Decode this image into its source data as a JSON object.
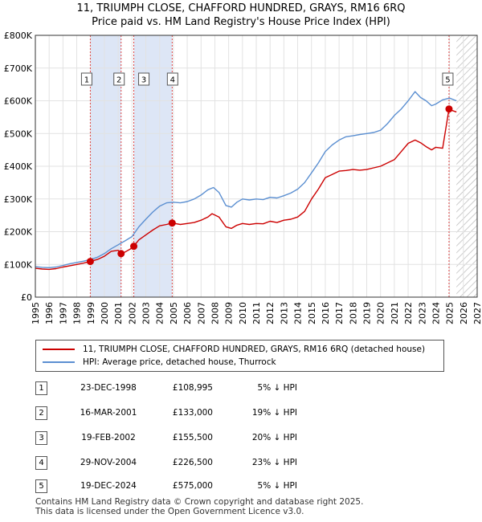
{
  "title_line1": "11, TRIUMPH CLOSE, CHAFFORD HUNDRED, GRAYS, RM16 6RQ",
  "title_line2": "Price paid vs. HM Land Registry's House Price Index (HPI)",
  "chart_data": {
    "type": "line",
    "title": "11, TRIUMPH CLOSE, CHAFFORD HUNDRED, GRAYS, RM16 6RQ — Price paid vs. HM Land Registry's House Price Index (HPI)",
    "xlabel": "",
    "ylabel": "",
    "xlim": [
      1995,
      2027
    ],
    "ylim": [
      0,
      800000
    ],
    "x_ticks": [
      "1995",
      "1996",
      "1997",
      "1998",
      "1999",
      "2000",
      "2001",
      "2002",
      "2003",
      "2004",
      "2005",
      "2006",
      "2007",
      "2008",
      "2009",
      "2010",
      "2011",
      "2012",
      "2013",
      "2014",
      "2015",
      "2016",
      "2017",
      "2018",
      "2019",
      "2020",
      "2021",
      "2022",
      "2023",
      "2024",
      "2025",
      "2026",
      "2027"
    ],
    "y_ticks": [
      "£0",
      "£100K",
      "£200K",
      "£300K",
      "£400K",
      "£500K",
      "£600K",
      "£700K",
      "£800K"
    ],
    "grid": true,
    "forecast_start": 2025.5,
    "series": [
      {
        "name": "11, TRIUMPH CLOSE, CHAFFORD HUNDRED, GRAYS, RM16 6RQ (detached house)",
        "color": "#cc0000",
        "x": [
          1995.0,
          1995.5,
          1996.0,
          1996.5,
          1997.0,
          1997.5,
          1998.0,
          1998.5,
          1998.98,
          1999.5,
          2000.0,
          2000.5,
          2001.0,
          2001.21,
          2001.5,
          2002.0,
          2002.13,
          2002.5,
          2003.0,
          2003.5,
          2004.0,
          2004.5,
          2004.91,
          2005.5,
          2006.0,
          2006.5,
          2007.0,
          2007.5,
          2007.8,
          2008.3,
          2008.8,
          2009.2,
          2009.6,
          2010.0,
          2010.5,
          2011.0,
          2011.5,
          2012.0,
          2012.5,
          2013.0,
          2013.5,
          2014.0,
          2014.5,
          2015.0,
          2015.5,
          2016.0,
          2016.5,
          2017.0,
          2017.5,
          2018.0,
          2018.5,
          2019.0,
          2019.5,
          2020.0,
          2020.5,
          2021.0,
          2021.5,
          2022.0,
          2022.5,
          2022.9,
          2023.3,
          2023.7,
          2024.0,
          2024.5,
          2024.96,
          2025.2,
          2025.5
        ],
        "y": [
          88000,
          86000,
          85000,
          87000,
          92000,
          96000,
          100000,
          104000,
          108995,
          115000,
          125000,
          140000,
          143000,
          133000,
          138000,
          150000,
          155500,
          175000,
          190000,
          205000,
          218000,
          222000,
          226500,
          222000,
          225000,
          228000,
          235000,
          245000,
          255000,
          245000,
          215000,
          210000,
          220000,
          225000,
          222000,
          225000,
          224000,
          232000,
          228000,
          235000,
          238000,
          245000,
          262000,
          300000,
          330000,
          365000,
          375000,
          385000,
          387000,
          390000,
          388000,
          390000,
          395000,
          400000,
          410000,
          420000,
          445000,
          470000,
          480000,
          472000,
          460000,
          450000,
          458000,
          455000,
          575000,
          570000,
          566000
        ]
      },
      {
        "name": "HPI: Average price, detached house, Thurrock",
        "color": "#5b8fd1",
        "x": [
          1995.0,
          1995.5,
          1996.0,
          1996.5,
          1997.0,
          1997.5,
          1998.0,
          1998.5,
          1999.0,
          1999.5,
          2000.0,
          2000.5,
          2001.0,
          2001.5,
          2002.0,
          2002.5,
          2003.0,
          2003.5,
          2004.0,
          2004.5,
          2005.0,
          2005.5,
          2006.0,
          2006.5,
          2007.0,
          2007.5,
          2007.9,
          2008.3,
          2008.8,
          2009.2,
          2009.6,
          2010.0,
          2010.5,
          2011.0,
          2011.5,
          2012.0,
          2012.5,
          2013.0,
          2013.5,
          2014.0,
          2014.5,
          2015.0,
          2015.5,
          2016.0,
          2016.5,
          2017.0,
          2017.5,
          2018.0,
          2018.5,
          2019.0,
          2019.5,
          2020.0,
          2020.5,
          2021.0,
          2021.5,
          2022.0,
          2022.5,
          2022.9,
          2023.3,
          2023.7,
          2024.0,
          2024.5,
          2025.0,
          2025.5
        ],
        "y": [
          93000,
          91000,
          90000,
          92000,
          97000,
          102000,
          106000,
          110000,
          115000,
          122000,
          133000,
          148000,
          160000,
          172000,
          185000,
          215000,
          238000,
          260000,
          278000,
          288000,
          290000,
          288000,
          292000,
          300000,
          312000,
          328000,
          335000,
          320000,
          280000,
          275000,
          290000,
          300000,
          297000,
          300000,
          298000,
          305000,
          303000,
          310000,
          318000,
          330000,
          350000,
          380000,
          410000,
          445000,
          465000,
          480000,
          490000,
          493000,
          497000,
          500000,
          503000,
          510000,
          530000,
          555000,
          575000,
          600000,
          628000,
          610000,
          600000,
          585000,
          590000,
          603000,
          608000,
          600000
        ]
      }
    ],
    "sales": [
      {
        "n": "1",
        "x": 1998.98,
        "y": 108995
      },
      {
        "n": "2",
        "x": 2001.21,
        "y": 133000
      },
      {
        "n": "3",
        "x": 2002.13,
        "y": 155500
      },
      {
        "n": "4",
        "x": 2004.91,
        "y": 226500
      },
      {
        "n": "5",
        "x": 2024.96,
        "y": 575000
      }
    ],
    "shaded_bands": [
      [
        1998.98,
        2001.21
      ],
      [
        2002.13,
        2004.91
      ]
    ]
  },
  "legend": {
    "line1": "11, TRIUMPH CLOSE, CHAFFORD HUNDRED, GRAYS, RM16 6RQ (detached house)",
    "line2": "HPI: Average price, detached house, Thurrock",
    "color1": "#cc0000",
    "color2": "#5b8fd1"
  },
  "sales_table": [
    {
      "n": "1",
      "date": "23-DEC-1998",
      "price": "£108,995",
      "hpi": "5% ↓ HPI"
    },
    {
      "n": "2",
      "date": "16-MAR-2001",
      "price": "£133,000",
      "hpi": "19% ↓ HPI"
    },
    {
      "n": "3",
      "date": "19-FEB-2002",
      "price": "£155,500",
      "hpi": "20% ↓ HPI"
    },
    {
      "n": "4",
      "date": "29-NOV-2004",
      "price": "£226,500",
      "hpi": "23% ↓ HPI"
    },
    {
      "n": "5",
      "date": "19-DEC-2024",
      "price": "£575,000",
      "hpi": "5% ↓ HPI"
    }
  ],
  "footer_line1": "Contains HM Land Registry data © Crown copyright and database right 2025.",
  "footer_line2": "This data is licensed under the Open Government Licence v3.0."
}
